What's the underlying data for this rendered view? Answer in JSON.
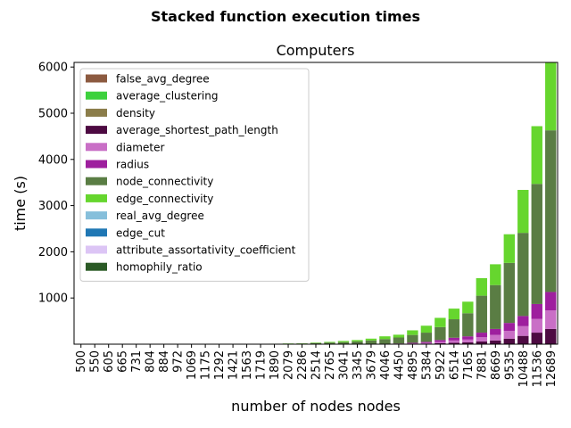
{
  "chart_data": {
    "type": "bar",
    "stacked": true,
    "suptitle": "Stacked function execution times",
    "title": "Computers",
    "xlabel": "number of nodes nodes",
    "ylabel": "time (s)",
    "ylim": [
      0,
      6100
    ],
    "yticks": [
      1000,
      2000,
      3000,
      4000,
      5000,
      6000
    ],
    "legend_position": "upper-left",
    "categories": [
      "500",
      "550",
      "605",
      "665",
      "731",
      "804",
      "884",
      "972",
      "1069",
      "1175",
      "1292",
      "1421",
      "1563",
      "1719",
      "1890",
      "2079",
      "2286",
      "2514",
      "2765",
      "3041",
      "3345",
      "3679",
      "4046",
      "4450",
      "4895",
      "5384",
      "5922",
      "6514",
      "7165",
      "7881",
      "8669",
      "9535",
      "10488",
      "11536",
      "12689"
    ],
    "series": [
      {
        "name": "homophily_ratio",
        "color": "#2b5a26",
        "values": [
          0,
          0,
          0,
          0,
          0,
          0,
          0,
          0,
          0,
          0,
          0,
          0,
          0,
          0,
          0,
          0,
          0,
          0,
          0,
          0,
          0,
          0,
          0,
          0,
          0,
          0,
          0,
          0,
          0,
          0,
          0,
          0,
          0,
          0,
          0
        ]
      },
      {
        "name": "attribute_assortativity_coefficient",
        "color": "#dcc5f5",
        "values": [
          0,
          0,
          0,
          0,
          0,
          0,
          0,
          0,
          0,
          0,
          0,
          0,
          0,
          0,
          0,
          0,
          0,
          0,
          0,
          0,
          0,
          0,
          0,
          0,
          0,
          0,
          0,
          0,
          0,
          0,
          0,
          0,
          0,
          0,
          0
        ]
      },
      {
        "name": "edge_cut",
        "color": "#1f77b4",
        "values": [
          0,
          0,
          0,
          0,
          0,
          0,
          0,
          0,
          0,
          0,
          0,
          0,
          0,
          0,
          0,
          0,
          0,
          0,
          0,
          0,
          0,
          0,
          0,
          0,
          0,
          0,
          0,
          0,
          0,
          0,
          0,
          0,
          0,
          0,
          0
        ]
      },
      {
        "name": "real_avg_degree",
        "color": "#86bfdb",
        "values": [
          0,
          0,
          0,
          0,
          0,
          0,
          0,
          0,
          0,
          0,
          0,
          0,
          0,
          0,
          0,
          0,
          0,
          0,
          0,
          0,
          0,
          0,
          0,
          0,
          0,
          0,
          0,
          0,
          0,
          0,
          0,
          0,
          0,
          0,
          0
        ]
      },
      {
        "name": "average_shortest_path_length",
        "color": "#4d0a42",
        "values": [
          0,
          0,
          0,
          0,
          0,
          0,
          0,
          0,
          0,
          0,
          0,
          0,
          0,
          0,
          0,
          0,
          0,
          0,
          0,
          0,
          0,
          0,
          0,
          0,
          5,
          10,
          20,
          30,
          40,
          60,
          80,
          120,
          180,
          250,
          330
        ]
      },
      {
        "name": "diameter",
        "color": "#c96fc6",
        "values": [
          0,
          0,
          0,
          0,
          0,
          0,
          0,
          0,
          0,
          0,
          0,
          0,
          0,
          0,
          0,
          0,
          0,
          0,
          0,
          0,
          0,
          0,
          5,
          5,
          10,
          20,
          30,
          50,
          60,
          90,
          120,
          170,
          210,
          300,
          400
        ]
      },
      {
        "name": "radius",
        "color": "#9e1f9e",
        "values": [
          0,
          0,
          0,
          0,
          0,
          0,
          0,
          0,
          0,
          0,
          0,
          0,
          0,
          0,
          0,
          0,
          0,
          0,
          0,
          0,
          0,
          0,
          5,
          10,
          15,
          20,
          40,
          60,
          70,
          100,
          130,
          170,
          220,
          320,
          400
        ]
      },
      {
        "name": "node_connectivity",
        "color": "#5a7d44",
        "values": [
          0,
          0,
          0,
          0,
          0,
          0,
          0,
          0,
          0,
          0,
          0,
          0,
          0,
          0,
          5,
          10,
          15,
          25,
          35,
          45,
          60,
          80,
          100,
          130,
          170,
          200,
          280,
          400,
          500,
          800,
          950,
          1300,
          1800,
          2600,
          3500
        ]
      },
      {
        "name": "edge_connectivity",
        "color": "#66d62e",
        "values": [
          0,
          0,
          0,
          0,
          0,
          0,
          0,
          0,
          0,
          0,
          0,
          0,
          0,
          0,
          5,
          5,
          5,
          10,
          15,
          25,
          30,
          40,
          60,
          60,
          100,
          150,
          200,
          230,
          250,
          380,
          450,
          620,
          930,
          1250,
          1470
        ]
      },
      {
        "name": "density",
        "color": "#8b7d4a",
        "values": [
          0,
          0,
          0,
          0,
          0,
          0,
          0,
          0,
          0,
          0,
          0,
          0,
          0,
          0,
          0,
          0,
          0,
          0,
          0,
          0,
          0,
          0,
          0,
          0,
          0,
          0,
          0,
          0,
          0,
          0,
          0,
          0,
          0,
          0,
          0
        ]
      },
      {
        "name": "average_clustering",
        "color": "#3dd13d",
        "values": [
          0,
          0,
          0,
          0,
          0,
          0,
          0,
          0,
          0,
          0,
          0,
          0,
          0,
          0,
          0,
          0,
          0,
          0,
          0,
          0,
          0,
          0,
          0,
          0,
          0,
          0,
          0,
          0,
          0,
          0,
          0,
          0,
          0,
          0,
          0
        ]
      },
      {
        "name": "false_avg_degree",
        "color": "#8c5a40",
        "values": [
          0,
          0,
          0,
          0,
          0,
          0,
          0,
          0,
          0,
          0,
          0,
          0,
          0,
          0,
          0,
          0,
          0,
          0,
          0,
          0,
          0,
          0,
          0,
          0,
          0,
          0,
          0,
          0,
          0,
          0,
          0,
          0,
          0,
          0,
          0
        ]
      }
    ],
    "legend_order": [
      "false_avg_degree",
      "average_clustering",
      "density",
      "average_shortest_path_length",
      "diameter",
      "radius",
      "node_connectivity",
      "edge_connectivity",
      "real_avg_degree",
      "edge_cut",
      "attribute_assortativity_coefficient",
      "homophily_ratio"
    ]
  }
}
